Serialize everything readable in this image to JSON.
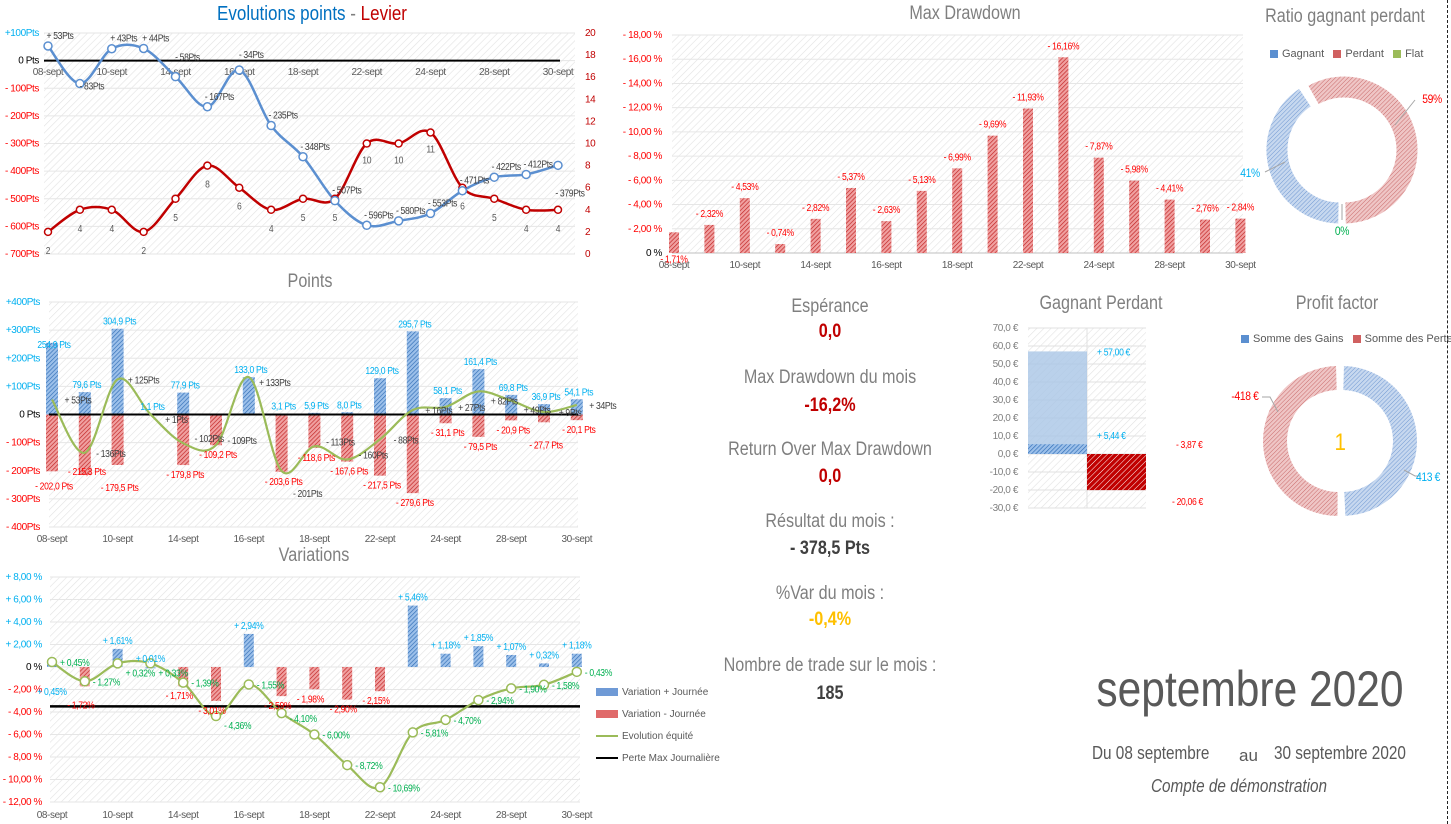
{
  "colors": {
    "blue": "#5b8fd0",
    "red": "#d04040",
    "label_red": "#ff0000",
    "label_cyan": "#00b0f0",
    "label_green": "#00b050",
    "equity": "#9bbb59",
    "dark_red": "#c00000",
    "orange": "#ffc000",
    "gray": "#7f7f7f",
    "levier": "#c00000"
  },
  "chart_data": [
    {
      "type": "line",
      "title_parts": [
        "Evolutions points",
        " - ",
        "Levier"
      ],
      "categories": [
        "08-sept",
        "",
        "10-sept",
        "",
        "14-sept",
        "",
        "16-sept",
        "",
        "18-sept",
        "",
        "22-sept",
        "",
        "24-sept",
        "",
        "28-sept",
        "",
        "30-sept"
      ],
      "y_left_ticks": [
        {
          "v": 100,
          "label": "+100Pts"
        },
        {
          "v": 0,
          "label": "0 Pts"
        },
        {
          "v": -100,
          "label": "- 100Pts"
        },
        {
          "v": -200,
          "label": "- 200Pts"
        },
        {
          "v": -300,
          "label": "- 300Pts"
        },
        {
          "v": -400,
          "label": "- 400Pts"
        },
        {
          "v": -500,
          "label": "- 500Pts"
        },
        {
          "v": -600,
          "label": "- 600Pts"
        },
        {
          "v": -700,
          "label": "- 700Pts"
        }
      ],
      "ylim_left": [
        -700,
        100
      ],
      "y_right_ticks": [
        0,
        2,
        4,
        6,
        8,
        10,
        12,
        14,
        16,
        18,
        20
      ],
      "ylim_right": [
        0,
        20
      ],
      "series": [
        {
          "axis": "left",
          "values": [
            53,
            -83,
            43,
            44,
            -58,
            -167,
            -34,
            -235,
            -348,
            -507,
            -596,
            -580,
            -553,
            -471,
            -422,
            -412,
            -379
          ],
          "labels": [
            "+ 53Pts",
            "- 83Pts",
            "+ 43Pts",
            "+ 44Pts",
            "- 58Pts",
            "- 167Pts",
            "- 34Pts",
            "- 235Pts",
            "- 348Pts",
            "- 507Pts",
            "- 596Pts",
            "- 580Pts",
            "- 553Pts",
            "- 471Pts",
            "- 422Pts",
            "- 412Pts",
            "- 379Pts"
          ]
        },
        {
          "axis": "right",
          "values": [
            2,
            4,
            4,
            2,
            5,
            8,
            6,
            4,
            5,
            5,
            10,
            10,
            11,
            6,
            5,
            4,
            4
          ]
        }
      ],
      "grid": true
    },
    {
      "type": "bar",
      "title": "Points",
      "categories": [
        "08-sept",
        "",
        "10-sept",
        "",
        "14-sept",
        "",
        "16-sept",
        "",
        "18-sept",
        "",
        "22-sept",
        "",
        "24-sept",
        "",
        "28-sept",
        "",
        "30-sept"
      ],
      "y_ticks": [
        {
          "v": 400,
          "label": "+400Pts"
        },
        {
          "v": 300,
          "label": "+300Pts"
        },
        {
          "v": 200,
          "label": "+200Pts"
        },
        {
          "v": 100,
          "label": "+100Pts"
        },
        {
          "v": 0,
          "label": "0 Pts"
        },
        {
          "v": -100,
          "label": "- 100Pts"
        },
        {
          "v": -200,
          "label": "- 200Pts"
        },
        {
          "v": -300,
          "label": "- 300Pts"
        },
        {
          "v": -400,
          "label": "- 400Pts"
        }
      ],
      "ylim": [
        -400,
        400
      ],
      "series": [
        {
          "kind": "bar-positive",
          "values": [
            254.9,
            79.6,
            304.9,
            1.1,
            77.9,
            0,
            133.0,
            3.1,
            5.9,
            8.0,
            129.0,
            295.7,
            58.1,
            161.4,
            69.8,
            36.9,
            54.1
          ]
        },
        {
          "kind": "bar-negative",
          "values": [
            -202.0,
            -215.3,
            -179.5,
            0,
            -179.8,
            -109.2,
            0,
            -203.6,
            -118.6,
            -167.6,
            -217.5,
            -279.6,
            -31.1,
            -79.5,
            -20.9,
            -27.7,
            -20.1
          ]
        },
        {
          "kind": "net-line",
          "values": [
            53,
            -136,
            125,
            1,
            -102,
            -109,
            133,
            -201,
            -113,
            -160,
            -88,
            16,
            27,
            82,
            49,
            9,
            34
          ]
        }
      ],
      "grid": true
    },
    {
      "type": "bar",
      "title": "Variations",
      "categories": [
        "08-sept",
        "",
        "10-sept",
        "",
        "14-sept",
        "",
        "16-sept",
        "",
        "18-sept",
        "",
        "22-sept",
        "",
        "24-sept",
        "",
        "28-sept",
        "",
        "30-sept"
      ],
      "y_ticks": [
        {
          "v": 8,
          "label": "+ 8,00 %"
        },
        {
          "v": 6,
          "label": "+ 6,00 %"
        },
        {
          "v": 4,
          "label": "+ 4,00 %"
        },
        {
          "v": 2,
          "label": "+ 2,00 %"
        },
        {
          "v": 0,
          "label": "0 %"
        },
        {
          "v": -2,
          "label": "- 2,00 %"
        },
        {
          "v": -4,
          "label": "- 4,00 %"
        },
        {
          "v": -6,
          "label": "- 6,00 %"
        },
        {
          "v": -8,
          "label": "- 8,00 %"
        },
        {
          "v": -10,
          "label": "- 10,00 %"
        },
        {
          "v": -12,
          "label": "- 12,00 %"
        }
      ],
      "ylim": [
        -12,
        8
      ],
      "series": [
        {
          "name": "Variation + Journée",
          "values": [
            0.45,
            0,
            1.61,
            0.01,
            0,
            0,
            2.94,
            0,
            0,
            0,
            0,
            5.46,
            1.18,
            1.85,
            1.07,
            0.32,
            1.18
          ]
        },
        {
          "name": "Variation - Journée",
          "values": [
            0,
            -1.72,
            0,
            0,
            -1.71,
            -3.01,
            0,
            -2.59,
            -1.98,
            -2.9,
            -2.15,
            0,
            0,
            0,
            0,
            0,
            0
          ]
        },
        {
          "name": "Evolution équité",
          "values": [
            0.45,
            -1.27,
            0.32,
            0.33,
            -1.39,
            -4.36,
            -1.55,
            -4.1,
            -6.0,
            -8.72,
            -10.69,
            -5.81,
            -4.7,
            -2.94,
            -1.9,
            -1.58,
            -0.43
          ]
        },
        {
          "name": "Perte Max Journalière",
          "value": -3.5
        }
      ],
      "legend": "right",
      "grid": true
    },
    {
      "type": "bar",
      "title": "Max Drawdown",
      "categories": [
        "08-sept",
        "",
        "10-sept",
        "",
        "14-sept",
        "",
        "16-sept",
        "",
        "18-sept",
        "",
        "22-sept",
        "",
        "24-sept",
        "",
        "28-sept",
        "",
        "30-sept"
      ],
      "y_ticks": [
        {
          "v": 18,
          "label": "- 18,00 %"
        },
        {
          "v": 16,
          "label": "- 16,00 %"
        },
        {
          "v": 14,
          "label": "- 14,00 %"
        },
        {
          "v": 12,
          "label": "- 12,00 %"
        },
        {
          "v": 10,
          "label": "- 10,00 %"
        },
        {
          "v": 8,
          "label": "- 8,00 %"
        },
        {
          "v": 6,
          "label": "- 6,00 %"
        },
        {
          "v": 4,
          "label": "- 4,00 %"
        },
        {
          "v": 2,
          "label": "- 2,00 %"
        },
        {
          "v": 0,
          "label": "0 %"
        }
      ],
      "ylim": [
        0,
        18
      ],
      "values": [
        1.71,
        2.32,
        4.53,
        0.74,
        2.82,
        5.37,
        2.63,
        5.13,
        6.99,
        9.69,
        11.93,
        16.16,
        7.87,
        5.98,
        4.41,
        2.76,
        2.84
      ],
      "grid": true
    },
    {
      "type": "pie",
      "title": "Ratio gagnant perdant",
      "legend": "top",
      "slices": [
        {
          "name": "Gagnant",
          "value": 41,
          "label": "41%"
        },
        {
          "name": "Perdant",
          "value": 59,
          "label": "59%"
        },
        {
          "name": "Flat",
          "value": 0,
          "label": "0%"
        }
      ]
    },
    {
      "type": "bar",
      "title": "Gagnant Perdant",
      "y_ticks": [
        {
          "v": 70,
          "label": "70,0 €"
        },
        {
          "v": 60,
          "label": "60,0 €"
        },
        {
          "v": 50,
          "label": "50,0 €"
        },
        {
          "v": 40,
          "label": "40,0 €"
        },
        {
          "v": 30,
          "label": "30,0 €"
        },
        {
          "v": 20,
          "label": "20,0 €"
        },
        {
          "v": 10,
          "label": "10,0 €"
        },
        {
          "v": 0,
          "label": "0,0 €"
        },
        {
          "v": -10,
          "label": "-10,0 €"
        },
        {
          "v": -20,
          "label": "-20,0 €"
        },
        {
          "v": -30,
          "label": "-30,0 €"
        }
      ],
      "ylim": [
        -30,
        70
      ],
      "series": [
        {
          "kind": "gagnant",
          "values": [
            57.0,
            5.44
          ],
          "labels": [
            "+ 57,00 €",
            "+ 5,44 €"
          ]
        },
        {
          "kind": "perdant",
          "values": [
            -3.87,
            -20.06
          ],
          "labels": [
            "- 3,87 €",
            "- 20,06 €"
          ]
        }
      ]
    },
    {
      "type": "pie",
      "title": "Profit factor",
      "legend": "top",
      "center_value": "1",
      "slices": [
        {
          "name": "Somme des Gains",
          "value": 413,
          "label": "413 €"
        },
        {
          "name": "Somme des Pertes",
          "value": 418,
          "label": "-418 €"
        }
      ]
    }
  ],
  "stats": {
    "esperance_label": "Espérance",
    "esperance_value": "0,0",
    "maxdd_label": "Max Drawdown du mois",
    "maxdd_value": "-16,2%",
    "romad_label": "Return Over Max Drawdown",
    "romad_value": "0,0",
    "resultat_label": "Résultat du mois :",
    "resultat_value": "- 378,5 Pts",
    "var_label": "%Var du mois :",
    "var_value": "-0,4%",
    "trades_label": "Nombre de trade sur le mois :",
    "trades_value": "185"
  },
  "period": {
    "month": "septembre 2020",
    "from": "Du 08 septembre",
    "to_word": "au",
    "to": "30 septembre 2020",
    "account": "Compte de démonstration"
  }
}
